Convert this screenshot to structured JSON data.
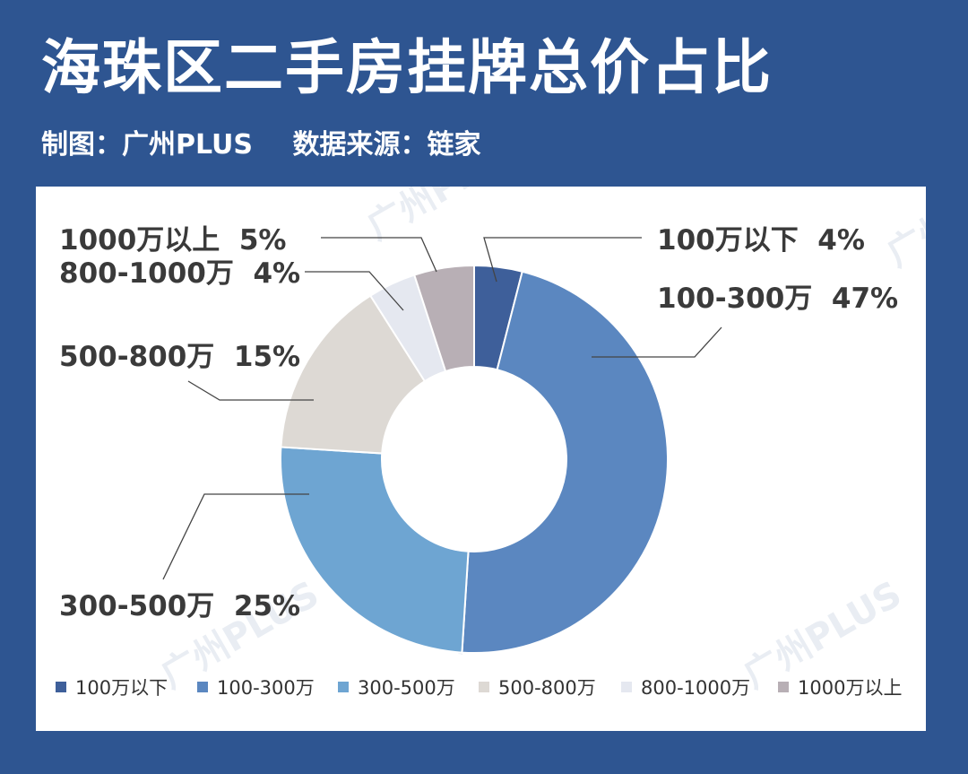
{
  "header": {
    "title": "海珠区二手房挂牌总价占比",
    "credit": "制图：广州PLUS",
    "source": "数据来源：链家"
  },
  "watermark": "广州PLUS",
  "chart_data": {
    "type": "pie",
    "donut": true,
    "title": "海珠区二手房挂牌总价占比",
    "legend_position": "bottom",
    "slices": [
      {
        "name": "100万以下",
        "value": 4,
        "label": "100万以下  4%",
        "color": "#3e5f9a"
      },
      {
        "name": "100-300万",
        "value": 47,
        "label": "100-300万  47%",
        "color": "#5b87c0"
      },
      {
        "name": "300-500万",
        "value": 25,
        "label": "300-500万  25%",
        "color": "#6ea5d2"
      },
      {
        "name": "500-800万",
        "value": 15,
        "label": "500-800万  15%",
        "color": "#ddd9d4"
      },
      {
        "name": "800-1000万",
        "value": 4,
        "label": "800-1000万  4%",
        "color": "#e5e8f0"
      },
      {
        "name": "1000万以上",
        "value": 5,
        "label": "1000万以上  5%",
        "color": "#b8afb5"
      }
    ]
  }
}
